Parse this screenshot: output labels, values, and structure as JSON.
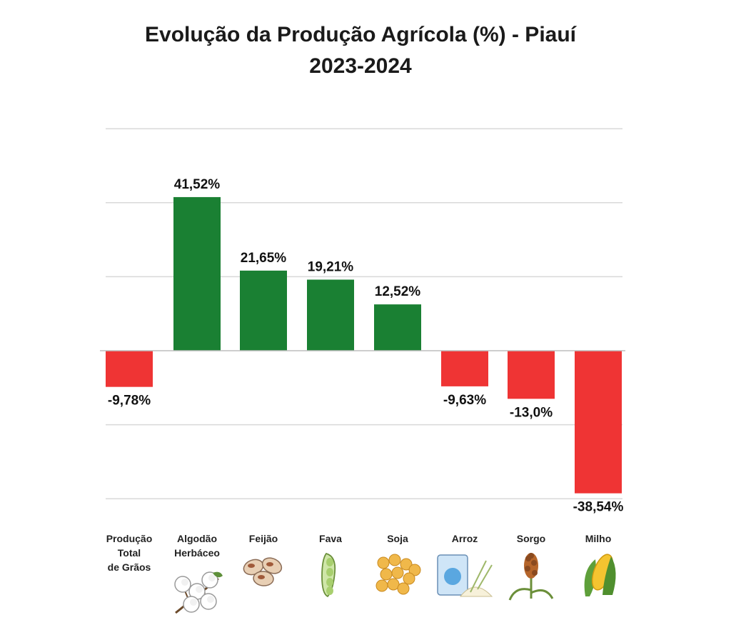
{
  "chart_data": {
    "type": "bar",
    "title": "Evolução da Produção Agrícola (%) - Piauí",
    "subtitle": "2023-2024",
    "categories": [
      [
        "Produção",
        "Total",
        "de Grãos"
      ],
      [
        "Algodão",
        "Herbáceo"
      ],
      [
        "Feijão"
      ],
      [
        "Fava"
      ],
      [
        "Soja"
      ],
      [
        "Arroz"
      ],
      [
        "Sorgo"
      ],
      [
        "Milho"
      ]
    ],
    "values": [
      -9.78,
      41.52,
      21.65,
      19.21,
      12.52,
      -9.63,
      -13.0,
      -38.54
    ],
    "value_labels": [
      "-9,78%",
      "41,52%",
      "21,65%",
      "19,21%",
      "12,52%",
      "-9,63%",
      "-13,0%",
      "-38,54%"
    ],
    "icons": [
      "",
      "cotton-icon",
      "bean-icon",
      "fava-pod-icon",
      "soybean-icon",
      "rice-bag-icon",
      "sorghum-icon",
      "corn-icon"
    ],
    "ylim": [
      -40,
      60
    ],
    "grid": true,
    "colors": {
      "positive": "#1a8033",
      "negative": "#ef3434",
      "grid": "#d9d9d9"
    }
  }
}
